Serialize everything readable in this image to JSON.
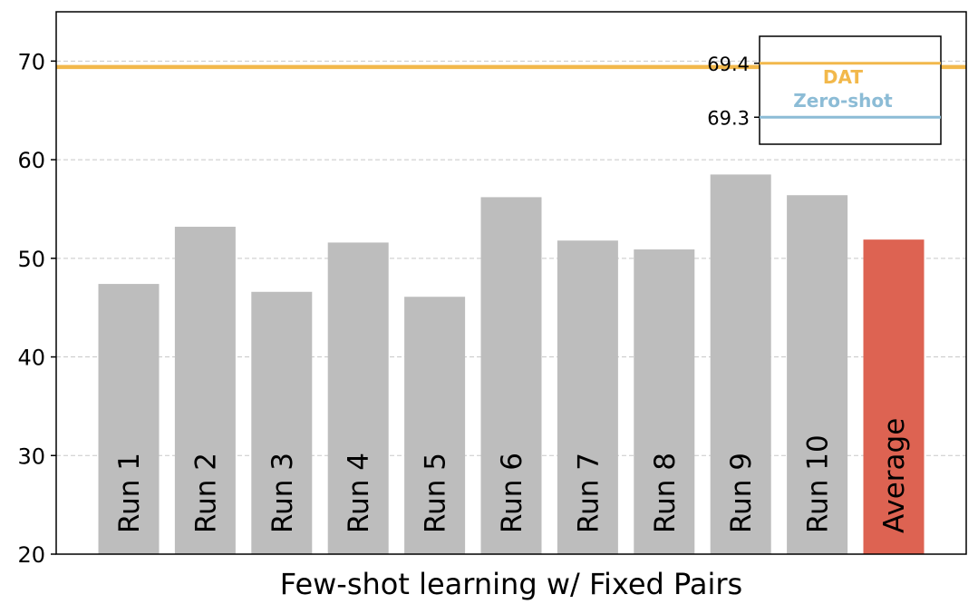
{
  "chart_data": {
    "type": "bar",
    "title": "",
    "xlabel": "Few-shot learning w/ Fixed Pairs",
    "ylabel": "",
    "ylim": [
      20,
      75
    ],
    "yticks": [
      20,
      30,
      40,
      50,
      60,
      70
    ],
    "grid": true,
    "categories": [
      "Run 1",
      "Run 2",
      "Run 3",
      "Run 4",
      "Run 5",
      "Run 6",
      "Run 7",
      "Run 8",
      "Run 9",
      "Run 10",
      "Average"
    ],
    "values": [
      47.4,
      53.2,
      46.6,
      51.6,
      46.1,
      56.2,
      51.8,
      50.9,
      58.5,
      56.4,
      51.9
    ],
    "bar_colors": [
      "#bdbdbd",
      "#bdbdbd",
      "#bdbdbd",
      "#bdbdbd",
      "#bdbdbd",
      "#bdbdbd",
      "#bdbdbd",
      "#bdbdbd",
      "#bdbdbd",
      "#bdbdbd",
      "#dd6352"
    ],
    "reference_lines": [
      {
        "name": "DAT",
        "value": 69.4,
        "color": "#f2b84b"
      },
      {
        "name": "Zero-shot",
        "value": 69.3,
        "color": "#8cbcd6"
      }
    ],
    "inset": {
      "ylim": [
        69.25,
        69.45
      ],
      "yticks": [
        "69.4",
        "69.3"
      ],
      "legend": [
        "DAT",
        "Zero-shot"
      ],
      "legend_placement": "top-right"
    }
  }
}
